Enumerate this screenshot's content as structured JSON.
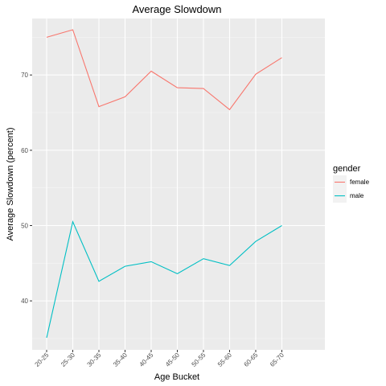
{
  "chart_data": {
    "type": "line",
    "title": "Average Slowdown",
    "xlabel": "Age Bucket",
    "ylabel": "Average Slowdown (percent)",
    "categories": [
      "20-25",
      "25-30",
      "30-35",
      "35-40",
      "40-45",
      "45-50",
      "50-55",
      "55-60",
      "60-65",
      "65-70"
    ],
    "ylim": [
      33.5,
      77.5
    ],
    "yticks": [
      40,
      50,
      60,
      70
    ],
    "legend": {
      "title": "gender",
      "placement": "right"
    },
    "grid": true,
    "series": [
      {
        "name": "female",
        "color": "#F8766D",
        "values": [
          75.0,
          76.0,
          65.8,
          67.1,
          70.5,
          68.3,
          68.2,
          65.4,
          70.1,
          72.3
        ]
      },
      {
        "name": "male",
        "color": "#00BFC4",
        "values": [
          35.1,
          50.5,
          42.6,
          44.6,
          45.2,
          43.6,
          45.6,
          44.7,
          47.9,
          50.0
        ]
      }
    ]
  }
}
